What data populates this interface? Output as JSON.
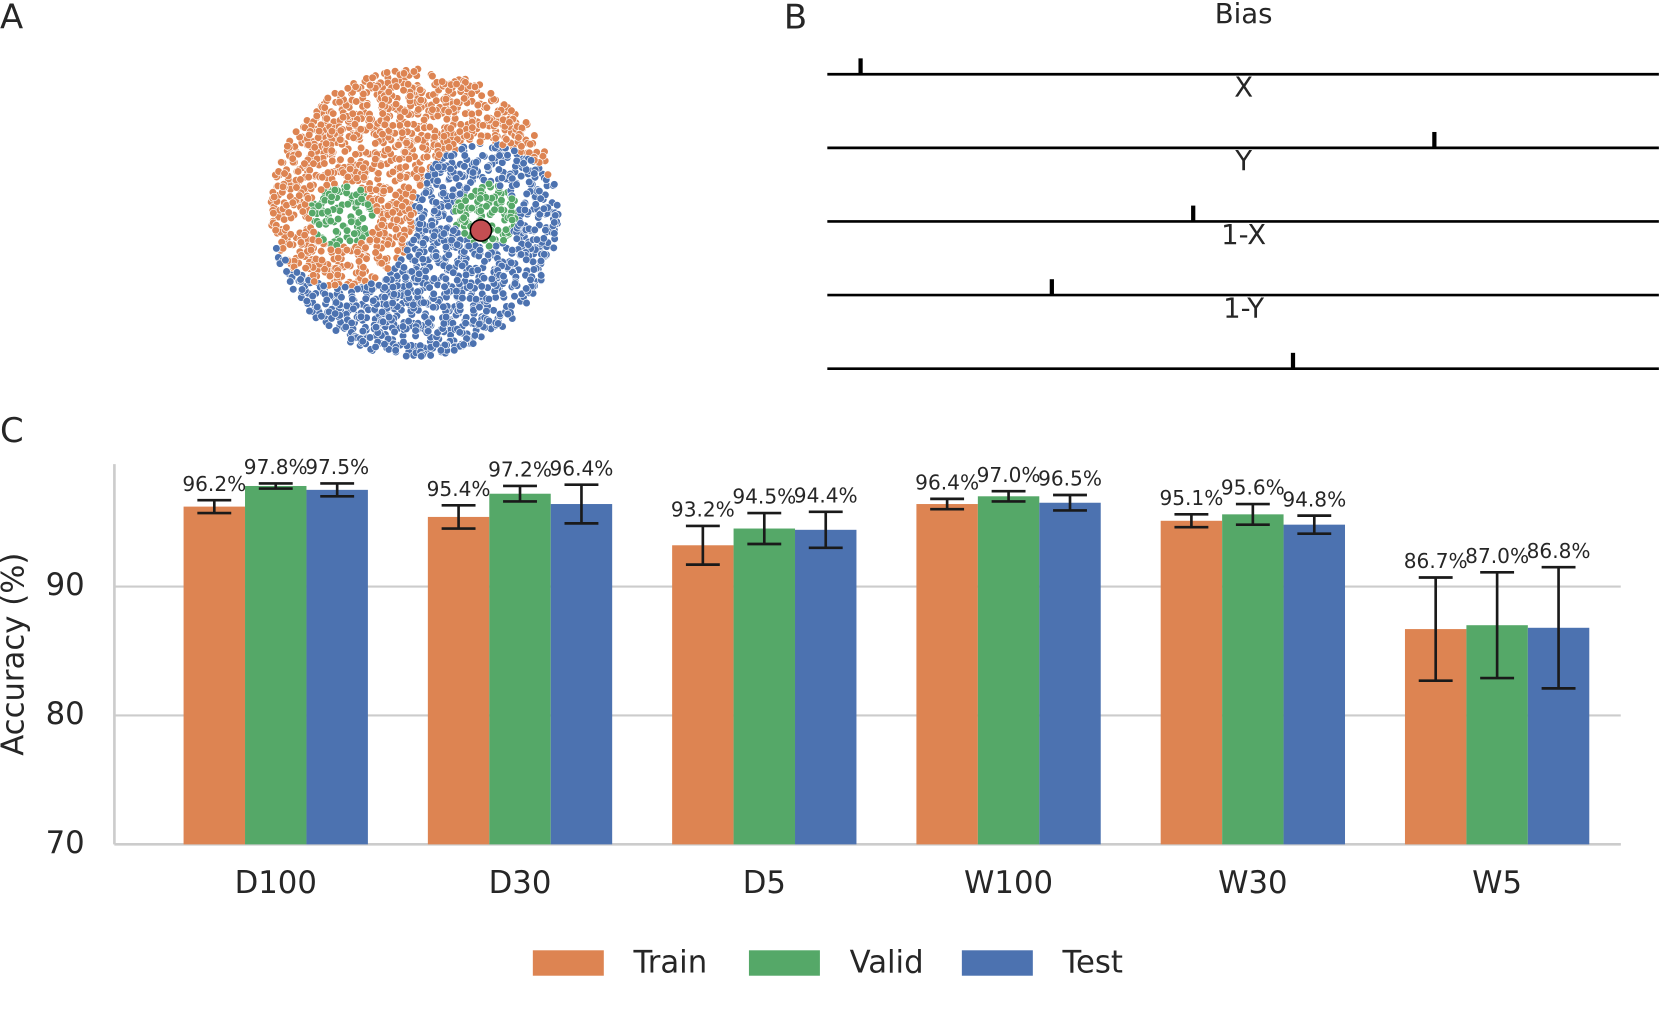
{
  "chart_data": [
    {
      "type": "scatter-illustration",
      "panel": "A"
    },
    {
      "type": "tick-strip",
      "panel": "B",
      "categories": [
        "Bias",
        "X",
        "Y",
        "1-X",
        "1-Y"
      ],
      "values": [
        0.04,
        0.73,
        0.44,
        0.27,
        0.56
      ],
      "xlim": [
        0,
        1
      ],
      "color": "#000000",
      "marker_color": "#c44e52"
    },
    {
      "type": "bar",
      "panel": "C",
      "categories": [
        "D100",
        "D30",
        "D5",
        "W100",
        "W30",
        "W5"
      ],
      "y_label": "Accuracy (%)",
      "ylim": [
        70,
        99.5
      ],
      "yticks": [
        70,
        80,
        90
      ],
      "grid": true,
      "legend": "bottom",
      "series": [
        {
          "name": "Train",
          "color": "#dd8452",
          "values": [
            96.2,
            95.4,
            93.2,
            96.4,
            95.1,
            86.7
          ],
          "value_labels": [
            "96.2%",
            "95.4%",
            "93.2%",
            "96.4%",
            "95.1%",
            "86.7%"
          ],
          "errors": [
            0.5,
            0.9,
            1.5,
            0.4,
            0.5,
            4.0
          ]
        },
        {
          "name": "Valid",
          "color": "#55a868",
          "values": [
            97.8,
            97.2,
            94.5,
            97.0,
            95.6,
            87.0
          ],
          "value_labels": [
            "97.8%",
            "97.2%",
            "94.5%",
            "97.0%",
            "95.6%",
            "87.0%"
          ],
          "errors": [
            0.2,
            0.6,
            1.2,
            0.4,
            0.8,
            4.1
          ]
        },
        {
          "name": "Test",
          "color": "#4c72b0",
          "values": [
            97.5,
            96.4,
            94.4,
            96.5,
            94.8,
            86.8
          ],
          "value_labels": [
            "97.5%",
            "96.4%",
            "94.4%",
            "96.5%",
            "94.8%",
            "86.8%"
          ],
          "errors": [
            0.5,
            1.5,
            1.4,
            0.6,
            0.7,
            4.7
          ]
        }
      ]
    }
  ]
}
